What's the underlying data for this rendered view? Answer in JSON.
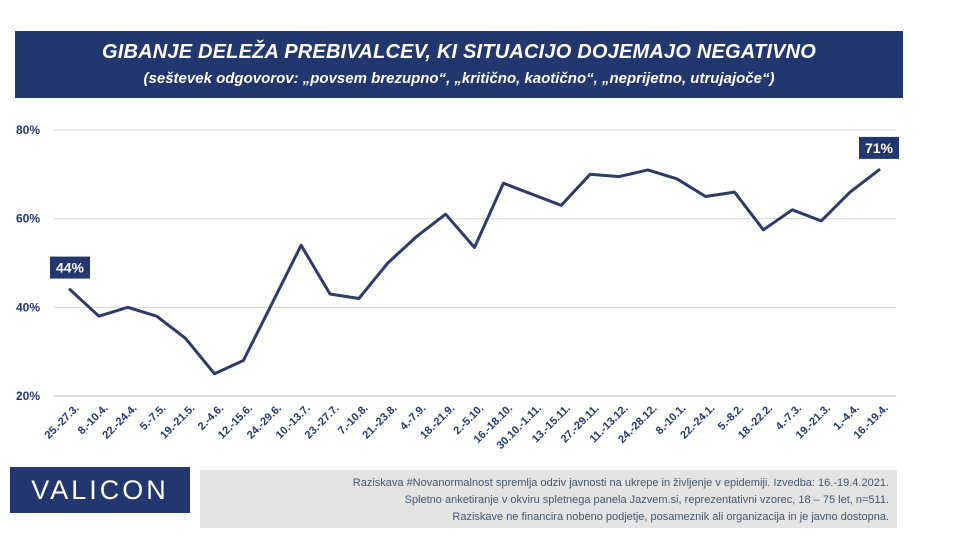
{
  "header": {
    "title": "GIBANJE DELEŽA PREBIVALCEV, KI SITUACIJO DOJEMAJO NEGATIVNO",
    "subtitle": "(seštevek odgovorov: „povsem brezupno“, „kritično, kaotično“, „neprijetno, utrujajoče“)"
  },
  "chart_data": {
    "type": "line",
    "title": "GIBANJE DELEŽA PREBIVALCEV, KI SITUACIJO DOJEMAJO NEGATIVNO",
    "subtitle": "(seštevek odgovorov: „povsem brezupno“, „kritično, kaotično“, „neprijetno, utrujajoče“)",
    "categories": [
      "25.-27.3.",
      "8.-10.4.",
      "22.-24.4.",
      "5.-7.5.",
      "19.-21.5.",
      "2.-4.6.",
      "12.-15.6.",
      "24.-29.6.",
      "10.-13.7.",
      "23.-27.7.",
      "7.-10.8.",
      "21.-23.8.",
      "4.-7.9.",
      "18.-21.9.",
      "2.-5.10.",
      "16.-18.10.",
      "30.10.-1.11.",
      "13.-15.11.",
      "27.-29.11.",
      "11.-13.12.",
      "24.-28.12.",
      "8.-10.1.",
      "22.-24.1.",
      "5.-8.2.",
      "18.-22.2.",
      "4.-7.3.",
      "19.-21.3.",
      "1.-4.4.",
      "16.-19.4."
    ],
    "values": [
      44,
      38,
      40,
      38,
      33,
      25,
      28,
      41,
      54,
      43,
      42,
      50,
      56,
      61,
      53.5,
      68,
      65.5,
      63,
      70,
      69.5,
      71,
      69,
      65,
      66,
      57.5,
      62,
      59.5,
      66,
      71
    ],
    "y_ticks": [
      "20%",
      "40%",
      "60%",
      "80%"
    ],
    "ylim": [
      20,
      80
    ],
    "grid": true,
    "line_color": "#2e3a67",
    "data_labels": [
      {
        "index": 0,
        "text": "44%"
      },
      {
        "index": 28,
        "text": "71%"
      }
    ]
  },
  "footer": {
    "logo": "VALICON",
    "notes": [
      "Raziskava #Novanormalnost spremlja odziv javnosti na ukrepe in življenje v epidemiji. Izvedba: 16.-19.4.2021.",
      "Spletno anketiranje v okviru spletnega panela Jazvem.si, reprezentativni vzorec, 18 – 75 let, n=511.",
      "Raziskave ne financira nobeno podjetje, posameznik ali organizacija in je javno dostopna."
    ]
  },
  "colors": {
    "banner": "#22376e",
    "line": "#2e3a67",
    "axis_text": "#22376e",
    "footer_bg": "#e4e4e4",
    "footer_text": "#44546a"
  }
}
